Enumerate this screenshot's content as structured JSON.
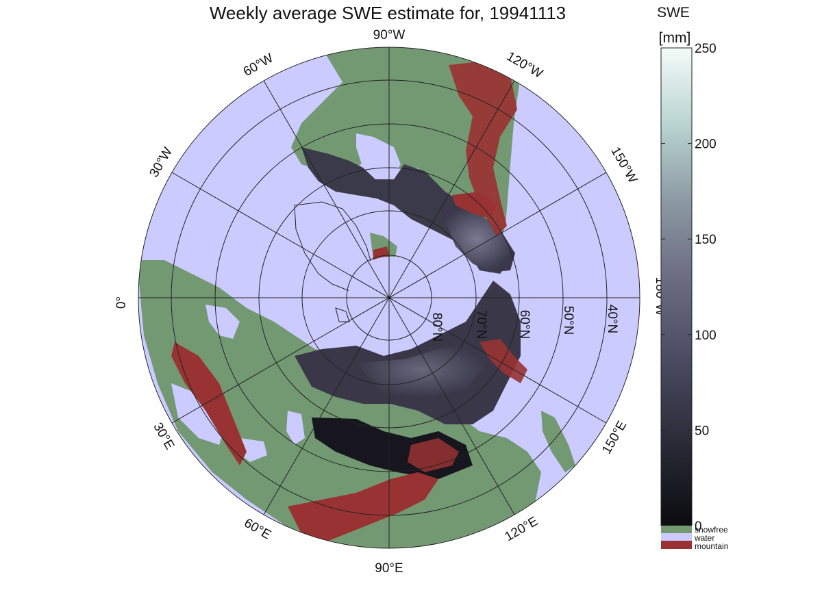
{
  "title": "Weekly average SWE estimate for, 19941113",
  "colorbar": {
    "header_line1": "SWE",
    "header_line2": "[mm]",
    "min": 0,
    "max": 250,
    "ticks": [
      "0",
      "50",
      "100",
      "150",
      "200",
      "250"
    ],
    "gradient_colors": [
      "#0b0b10",
      "#2a2a36",
      "#4b4b63",
      "#6c6c83",
      "#8c9aa3",
      "#b9d4d1",
      "#f4fbf8"
    ],
    "categories": [
      {
        "label": "snowfree",
        "color": "#739973"
      },
      {
        "label": "water",
        "color": "#cccbff"
      },
      {
        "label": "mountain",
        "color": "#993333"
      }
    ]
  },
  "longitude_labels": [
    "90°W",
    "60°W",
    "30°W",
    "0°",
    "30°E",
    "60°E",
    "90°E",
    "120°E",
    "150°E",
    "180°W",
    "150°W",
    "120°W"
  ],
  "latitude_labels": [
    "80°N",
    "70°N",
    "60°N",
    "50°N",
    "40°N"
  ],
  "colors": {
    "water": "#cccbff",
    "snowfree": "#739973",
    "mountain": "#993333",
    "snow": "#3e3c4c",
    "ice_outline": "#222222"
  }
}
